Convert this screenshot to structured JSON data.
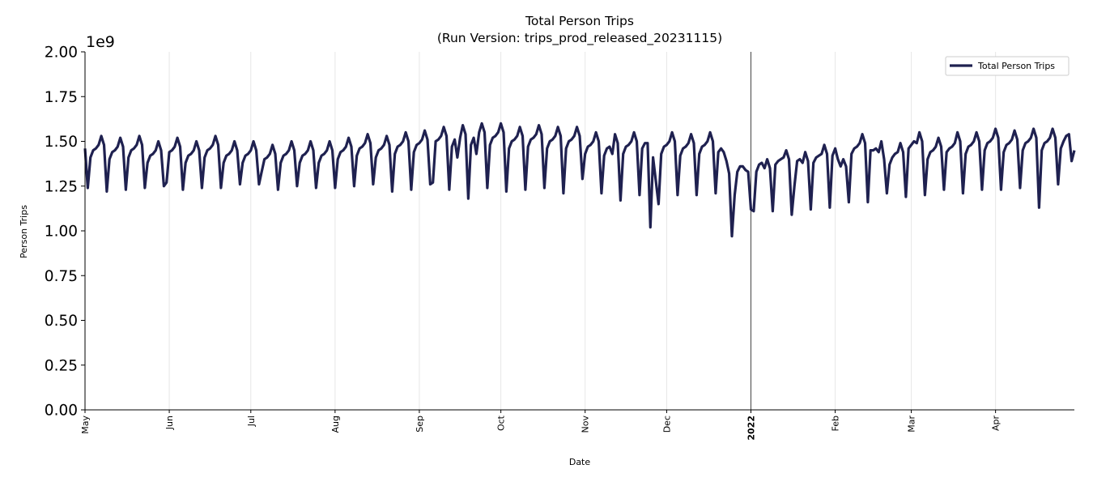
{
  "chart_data": {
    "type": "line",
    "title": "Total Person Trips",
    "subtitle": "(Run Version: trips_prod_released_20231115)",
    "xlabel": "Date",
    "ylabel": "Person Trips",
    "y_multiplier_label": "1e9",
    "ylim": [
      0,
      2.0
    ],
    "yticks": [
      "0.00",
      "0.25",
      "0.50",
      "0.75",
      "1.00",
      "1.25",
      "1.50",
      "1.75",
      "2.00"
    ],
    "x_start": "2021-05-01",
    "x_end": "2022-04-30",
    "x_frequency": "daily",
    "xticks": [
      {
        "date": "2021-05-01",
        "label": "May"
      },
      {
        "date": "2021-06-01",
        "label": "Jun"
      },
      {
        "date": "2021-07-01",
        "label": "Jul"
      },
      {
        "date": "2021-08-01",
        "label": "Aug"
      },
      {
        "date": "2021-09-01",
        "label": "Sep"
      },
      {
        "date": "2021-10-01",
        "label": "Oct"
      },
      {
        "date": "2021-11-01",
        "label": "Nov"
      },
      {
        "date": "2021-12-01",
        "label": "Dec"
      },
      {
        "date": "2022-01-01",
        "label": "2022",
        "bold": true
      },
      {
        "date": "2022-02-01",
        "label": "Feb"
      },
      {
        "date": "2022-03-01",
        "label": "Mar"
      },
      {
        "date": "2022-04-01",
        "label": "Apr"
      }
    ],
    "vertical_marker_date": "2022-01-01",
    "grid": "vertical at month ticks",
    "legend_position": "top-right",
    "series": [
      {
        "name": "Total Person Trips",
        "color": "#1f2150",
        "values": [
          1.46,
          1.24,
          1.41,
          1.45,
          1.46,
          1.48,
          1.53,
          1.48,
          1.22,
          1.4,
          1.44,
          1.45,
          1.47,
          1.52,
          1.47,
          1.23,
          1.41,
          1.45,
          1.46,
          1.48,
          1.53,
          1.48,
          1.24,
          1.38,
          1.42,
          1.43,
          1.45,
          1.5,
          1.45,
          1.25,
          1.27,
          1.44,
          1.45,
          1.47,
          1.52,
          1.47,
          1.23,
          1.38,
          1.42,
          1.43,
          1.45,
          1.5,
          1.45,
          1.24,
          1.41,
          1.45,
          1.46,
          1.48,
          1.53,
          1.48,
          1.24,
          1.38,
          1.42,
          1.43,
          1.45,
          1.5,
          1.45,
          1.26,
          1.38,
          1.42,
          1.43,
          1.45,
          1.5,
          1.45,
          1.26,
          1.33,
          1.4,
          1.41,
          1.43,
          1.48,
          1.43,
          1.23,
          1.38,
          1.42,
          1.43,
          1.45,
          1.5,
          1.45,
          1.25,
          1.38,
          1.42,
          1.43,
          1.45,
          1.5,
          1.45,
          1.24,
          1.38,
          1.42,
          1.43,
          1.45,
          1.5,
          1.45,
          1.24,
          1.4,
          1.44,
          1.45,
          1.47,
          1.52,
          1.47,
          1.25,
          1.42,
          1.46,
          1.47,
          1.49,
          1.54,
          1.49,
          1.26,
          1.41,
          1.45,
          1.46,
          1.48,
          1.53,
          1.48,
          1.22,
          1.43,
          1.47,
          1.48,
          1.5,
          1.55,
          1.5,
          1.23,
          1.44,
          1.48,
          1.49,
          1.51,
          1.56,
          1.51,
          1.26,
          1.27,
          1.5,
          1.51,
          1.53,
          1.58,
          1.53,
          1.23,
          1.47,
          1.51,
          1.41,
          1.52,
          1.59,
          1.54,
          1.18,
          1.48,
          1.52,
          1.43,
          1.55,
          1.6,
          1.55,
          1.24,
          1.48,
          1.52,
          1.53,
          1.55,
          1.6,
          1.55,
          1.22,
          1.46,
          1.5,
          1.51,
          1.53,
          1.58,
          1.53,
          1.23,
          1.47,
          1.51,
          1.52,
          1.54,
          1.59,
          1.54,
          1.24,
          1.46,
          1.5,
          1.51,
          1.53,
          1.58,
          1.53,
          1.21,
          1.46,
          1.5,
          1.51,
          1.53,
          1.58,
          1.53,
          1.29,
          1.43,
          1.47,
          1.48,
          1.5,
          1.55,
          1.5,
          1.21,
          1.42,
          1.46,
          1.47,
          1.43,
          1.54,
          1.49,
          1.17,
          1.43,
          1.47,
          1.48,
          1.5,
          1.55,
          1.5,
          1.2,
          1.46,
          1.49,
          1.49,
          1.02,
          1.41,
          1.28,
          1.15,
          1.43,
          1.47,
          1.48,
          1.5,
          1.55,
          1.5,
          1.2,
          1.42,
          1.46,
          1.47,
          1.49,
          1.54,
          1.49,
          1.2,
          1.43,
          1.47,
          1.48,
          1.5,
          1.55,
          1.5,
          1.21,
          1.44,
          1.46,
          1.44,
          1.39,
          1.32,
          0.97,
          1.2,
          1.33,
          1.36,
          1.36,
          1.34,
          1.33,
          1.12,
          1.11,
          1.33,
          1.37,
          1.38,
          1.35,
          1.4,
          1.35,
          1.11,
          1.37,
          1.39,
          1.4,
          1.41,
          1.45,
          1.4,
          1.09,
          1.25,
          1.39,
          1.4,
          1.38,
          1.44,
          1.39,
          1.12,
          1.38,
          1.41,
          1.42,
          1.43,
          1.48,
          1.43,
          1.13,
          1.42,
          1.46,
          1.4,
          1.36,
          1.4,
          1.36,
          1.16,
          1.43,
          1.46,
          1.47,
          1.49,
          1.54,
          1.49,
          1.16,
          1.45,
          1.45,
          1.46,
          1.44,
          1.5,
          1.4,
          1.21,
          1.37,
          1.41,
          1.43,
          1.44,
          1.49,
          1.44,
          1.19,
          1.46,
          1.48,
          1.5,
          1.49,
          1.55,
          1.5,
          1.2,
          1.4,
          1.44,
          1.45,
          1.47,
          1.52,
          1.47,
          1.23,
          1.44,
          1.46,
          1.47,
          1.49,
          1.55,
          1.5,
          1.21,
          1.43,
          1.47,
          1.48,
          1.5,
          1.55,
          1.5,
          1.23,
          1.45,
          1.49,
          1.5,
          1.52,
          1.57,
          1.52,
          1.23,
          1.44,
          1.48,
          1.49,
          1.51,
          1.56,
          1.51,
          1.24,
          1.45,
          1.49,
          1.5,
          1.52,
          1.57,
          1.52,
          1.13,
          1.45,
          1.49,
          1.5,
          1.52,
          1.57,
          1.52,
          1.26,
          1.46,
          1.5,
          1.53,
          1.54,
          1.39,
          1.45
        ]
      }
    ]
  }
}
